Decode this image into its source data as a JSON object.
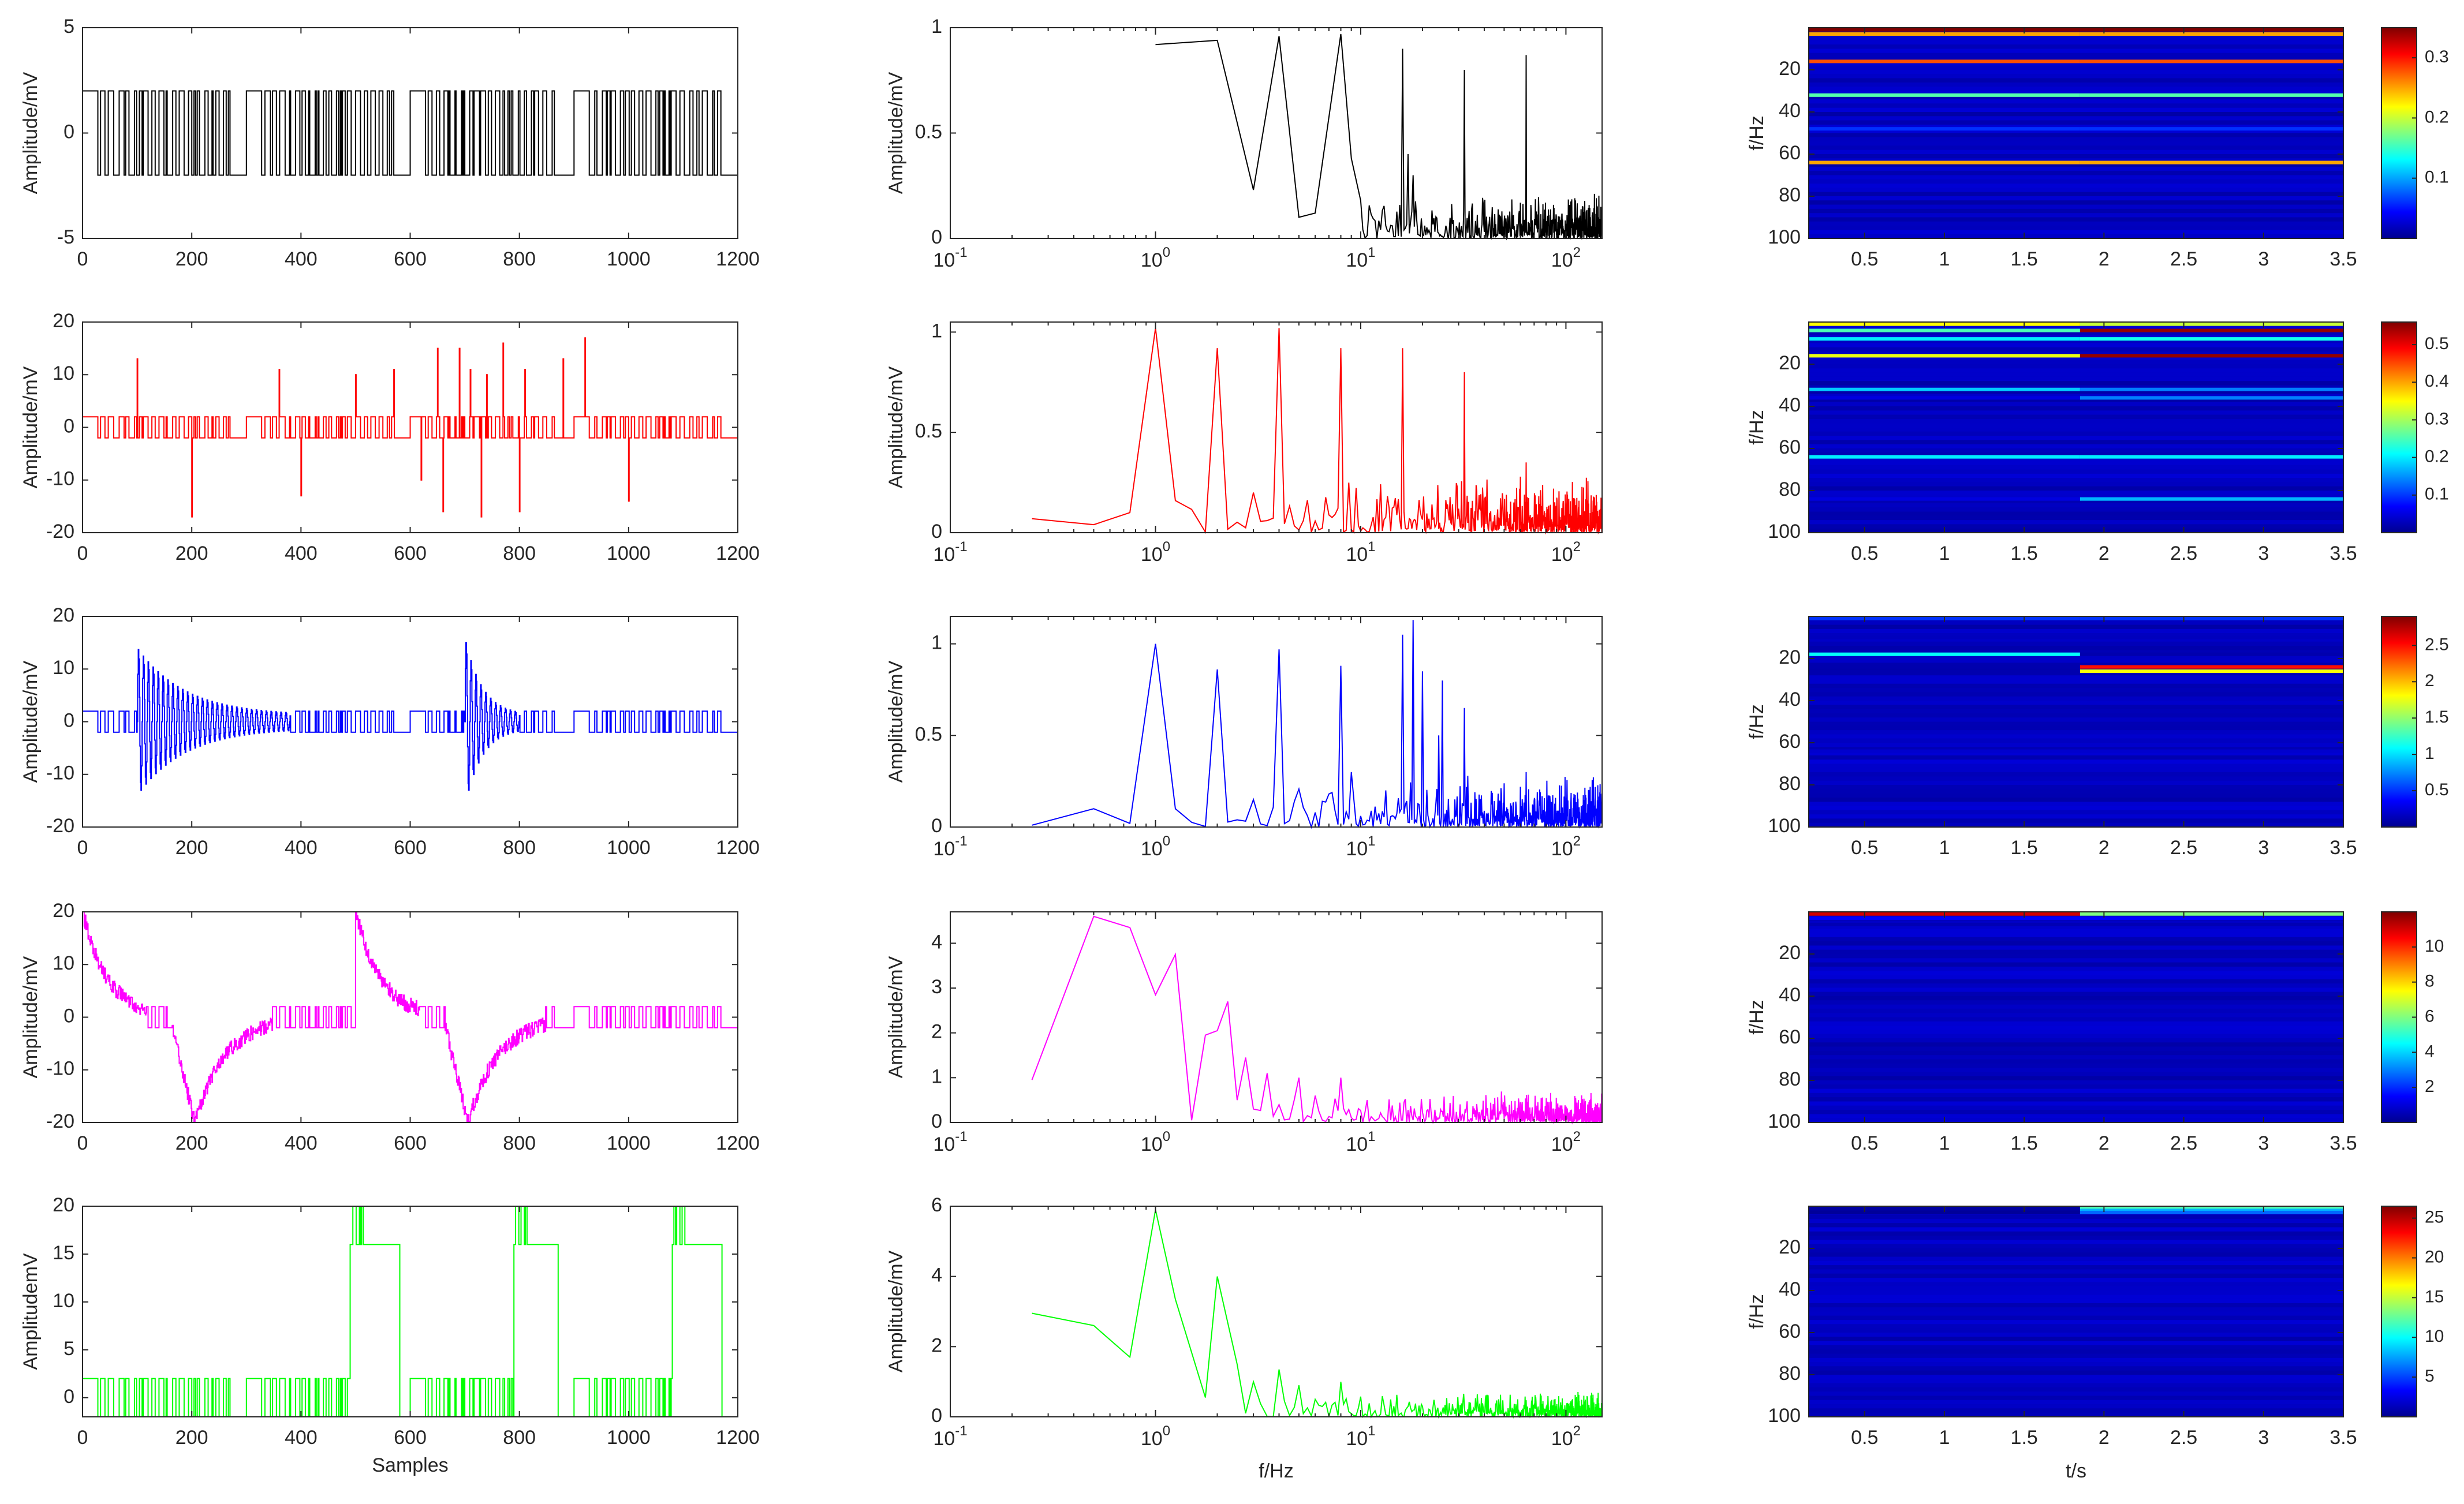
{
  "figure": {
    "rows": 5,
    "columns": [
      "time-domain",
      "frequency-spectrum",
      "spectrogram"
    ]
  },
  "colors": {
    "black": "#000000",
    "red": "#ff0000",
    "blue": "#0000ff",
    "magenta": "#ff00ff",
    "green": "#00ff00",
    "axis": "#262626",
    "colormap": [
      "#00008f",
      "#0000ff",
      "#0080ff",
      "#00ffff",
      "#80ff80",
      "#ffff00",
      "#ff8000",
      "#ff0000",
      "#800000"
    ]
  },
  "chart_data": [
    {
      "panel": "time-1",
      "type": "line",
      "color": "#000000",
      "xlabel": "",
      "ylabel": "Amplitude/mV",
      "xlim": [
        0,
        1200
      ],
      "ylim": [
        -5,
        5
      ],
      "xticks": [
        "0",
        "200",
        "400",
        "600",
        "800",
        "1000",
        "1200"
      ],
      "yticks": [
        "-5",
        "0",
        "5"
      ],
      "signal": {
        "kind": "square",
        "levels": [
          -2,
          2
        ],
        "bursts": [
          [
            0,
            300
          ],
          [
            300,
            600
          ],
          [
            600,
            900
          ],
          [
            900,
            1200
          ]
        ]
      }
    },
    {
      "panel": "time-2",
      "type": "line",
      "color": "#ff0000",
      "xlabel": "",
      "ylabel": "Amplitude/mV",
      "xlim": [
        0,
        1200
      ],
      "ylim": [
        -20,
        20
      ],
      "xticks": [
        "0",
        "200",
        "400",
        "600",
        "800",
        "1000",
        "1200"
      ],
      "yticks": [
        "-20",
        "-10",
        "0",
        "10",
        "20"
      ],
      "signal": {
        "kind": "square-spikes",
        "levels": [
          -2,
          2
        ],
        "spikes": [
          [
            100,
            13
          ],
          [
            200,
            -17
          ],
          [
            360,
            11
          ],
          [
            400,
            -13
          ],
          [
            500,
            10
          ],
          [
            570,
            11
          ],
          [
            620,
            -10
          ],
          [
            650,
            15
          ],
          [
            660,
            -16
          ],
          [
            690,
            15
          ],
          [
            710,
            11
          ],
          [
            730,
            -17
          ],
          [
            740,
            10
          ],
          [
            770,
            16
          ],
          [
            800,
            -16
          ],
          [
            810,
            11
          ],
          [
            880,
            13
          ],
          [
            920,
            17
          ],
          [
            1000,
            -14
          ]
        ]
      }
    },
    {
      "panel": "time-3",
      "type": "line",
      "color": "#0000ff",
      "xlabel": "",
      "ylabel": "Amplitude/mV",
      "xlim": [
        0,
        1200
      ],
      "ylim": [
        -20,
        20
      ],
      "xticks": [
        "0",
        "200",
        "400",
        "600",
        "800",
        "1000",
        "1200"
      ],
      "yticks": [
        "-20",
        "-10",
        "0",
        "10",
        "20"
      ],
      "signal": {
        "kind": "oscillation-bursts",
        "levels": [
          -2,
          2
        ],
        "bursts": [
          [
            100,
            380,
            13
          ],
          [
            700,
            800,
            15
          ]
        ]
      }
    },
    {
      "panel": "time-4",
      "type": "line",
      "color": "#ff00ff",
      "xlabel": "",
      "ylabel": "Amplitude/mV",
      "xlim": [
        0,
        1200
      ],
      "ylim": [
        -20,
        20
      ],
      "xticks": [
        "0",
        "200",
        "400",
        "600",
        "800",
        "1000",
        "1200"
      ],
      "yticks": [
        "-20",
        "-10",
        "0",
        "10",
        "20"
      ],
      "signal": {
        "kind": "drift",
        "levels": [
          -2,
          2
        ],
        "events": [
          [
            0,
            20
          ],
          [
            160,
            -20
          ],
          [
            500,
            20
          ],
          [
            660,
            -20
          ]
        ]
      }
    },
    {
      "panel": "time-5",
      "type": "line",
      "color": "#00ff00",
      "xlabel": "Samples",
      "ylabel": "AmplitudemV",
      "xlim": [
        0,
        1200
      ],
      "ylim": [
        -2,
        20
      ],
      "xticks": [
        "0",
        "200",
        "400",
        "600",
        "800",
        "1000",
        "1200"
      ],
      "yticks": [
        "0",
        "5",
        "10",
        "15",
        "20"
      ],
      "signal": {
        "kind": "level-shift",
        "levels": [
          -2,
          2
        ],
        "high": [
          [
            490,
            580
          ],
          [
            790,
            870
          ],
          [
            1080,
            1170
          ]
        ],
        "highLevels": [
          16,
          20
        ]
      }
    },
    {
      "panel": "freq-1",
      "type": "line",
      "scale": "logx",
      "color": "#000000",
      "xlabel": "",
      "ylabel": "Amplitude/mV",
      "xlim": [
        0.1,
        150
      ],
      "ylim": [
        0,
        1
      ],
      "yticks": [
        "0",
        "0.5",
        "1"
      ],
      "peaks": [
        [
          1,
          0.92
        ],
        [
          2,
          0.94
        ],
        [
          3,
          0.23
        ],
        [
          4,
          0.96
        ],
        [
          5,
          0.1
        ],
        [
          6,
          0.12
        ],
        [
          8,
          0.97
        ],
        [
          9,
          0.38
        ],
        [
          16,
          0.9
        ],
        [
          17,
          0.4
        ],
        [
          18,
          0.3
        ],
        [
          32,
          0.8
        ],
        [
          64,
          0.87
        ]
      ],
      "noise": {
        "from": 10,
        "to": 150,
        "amp": 0.14
      }
    },
    {
      "panel": "freq-2",
      "type": "line",
      "scale": "logx",
      "color": "#ff0000",
      "xlabel": "",
      "ylabel": "Amplitude/mV",
      "xlim": [
        0.1,
        150
      ],
      "ylim": [
        0,
        1.05
      ],
      "yticks": [
        "0",
        "0.5",
        "1"
      ],
      "peaks": [
        [
          0.25,
          0.07
        ],
        [
          0.5,
          0.04
        ],
        [
          0.75,
          0.1
        ],
        [
          1,
          1.02
        ],
        [
          1.25,
          0.16
        ],
        [
          2,
          0.92
        ],
        [
          3,
          0.2
        ],
        [
          4,
          1.02
        ],
        [
          8,
          0.92
        ],
        [
          16,
          0.92
        ],
        [
          32,
          0.8
        ],
        [
          64,
          0.35
        ]
      ],
      "noise": {
        "from": 1.2,
        "to": 150,
        "amp": 0.18
      }
    },
    {
      "panel": "freq-3",
      "type": "line",
      "scale": "logx",
      "color": "#0000ff",
      "xlabel": "",
      "ylabel": "Amplitude/mV",
      "xlim": [
        0.1,
        150
      ],
      "ylim": [
        0,
        1.15
      ],
      "yticks": [
        "0",
        "0.5",
        "1"
      ],
      "peaks": [
        [
          0.25,
          0.01
        ],
        [
          0.5,
          0.1
        ],
        [
          0.75,
          0.02
        ],
        [
          1,
          1.0
        ],
        [
          1.25,
          0.1
        ],
        [
          2,
          0.86
        ],
        [
          3,
          0.15
        ],
        [
          4,
          0.97
        ],
        [
          8,
          0.88
        ],
        [
          9,
          0.3
        ],
        [
          16,
          1.05
        ],
        [
          18,
          1.13
        ],
        [
          20,
          0.85
        ],
        [
          24,
          0.5
        ],
        [
          25,
          0.8
        ],
        [
          32,
          0.65
        ],
        [
          64,
          0.3
        ]
      ],
      "noise": {
        "from": 1.2,
        "to": 150,
        "amp": 0.18
      }
    },
    {
      "panel": "freq-4",
      "type": "line",
      "scale": "logx",
      "color": "#ff00ff",
      "xlabel": "",
      "ylabel": "Amplitude/mV",
      "xlim": [
        0.1,
        150
      ],
      "ylim": [
        0,
        4.7
      ],
      "yticks": [
        "0",
        "1",
        "2",
        "3",
        "4"
      ],
      "peaks": [
        [
          0.25,
          0.95
        ],
        [
          0.5,
          4.6
        ],
        [
          0.75,
          4.35
        ],
        [
          1,
          2.85
        ],
        [
          1.25,
          3.75
        ],
        [
          1.5,
          0.05
        ],
        [
          1.75,
          1.95
        ],
        [
          2,
          2.05
        ],
        [
          2.25,
          2.7
        ],
        [
          2.5,
          0.5
        ],
        [
          2.75,
          1.45
        ],
        [
          3,
          0.3
        ],
        [
          3.5,
          1.1
        ],
        [
          4,
          0.4
        ],
        [
          5,
          1.0
        ],
        [
          6,
          0.6
        ],
        [
          8,
          1.0
        ]
      ],
      "noise": {
        "from": 3,
        "to": 150,
        "amp": 0.45
      }
    },
    {
      "panel": "freq-5",
      "type": "line",
      "scale": "logx",
      "color": "#00ff00",
      "xlabel": "f/Hz",
      "ylabel": "Amplitude/mV",
      "xlim": [
        0.1,
        150
      ],
      "ylim": [
        0,
        6
      ],
      "yticks": [
        "0",
        "2",
        "4",
        "6"
      ],
      "peaks": [
        [
          0.25,
          2.95
        ],
        [
          0.5,
          2.6
        ],
        [
          0.75,
          1.7
        ],
        [
          1,
          5.9
        ],
        [
          1.25,
          3.35
        ],
        [
          1.75,
          0.55
        ],
        [
          2,
          4.0
        ],
        [
          2.5,
          1.5
        ],
        [
          3,
          1.0
        ],
        [
          4,
          1.35
        ],
        [
          5,
          0.9
        ],
        [
          6,
          0.5
        ],
        [
          8,
          1.0
        ]
      ],
      "noise": {
        "from": 2.5,
        "to": 150,
        "amp": 0.5
      }
    },
    {
      "panel": "spec-1",
      "type": "heatmap",
      "xlabel": "",
      "ylabel": "f/Hz",
      "xlim": [
        0.15,
        3.5
      ],
      "ylim": [
        0,
        100
      ],
      "xticks": [
        "0.5",
        "1",
        "1.5",
        "2",
        "2.5",
        "3",
        "3.5"
      ],
      "yticks": [
        "20",
        "40",
        "60",
        "80",
        "100"
      ],
      "cbar": {
        "min": 0,
        "max": 0.35,
        "ticks": [
          "0.1",
          "0.2",
          "0.3"
        ]
      },
      "lines": [
        [
          1,
          0.35,
          0.35
        ],
        [
          3,
          0.25,
          0.25
        ],
        [
          16,
          0.28,
          0.28
        ],
        [
          32,
          0.16,
          0.16
        ],
        [
          48,
          0.06,
          0.06
        ],
        [
          64,
          0.25,
          0.25
        ]
      ]
    },
    {
      "panel": "spec-2",
      "type": "heatmap",
      "xlabel": "",
      "ylabel": "f/Hz",
      "xlim": [
        0.15,
        3.5
      ],
      "ylim": [
        0,
        100
      ],
      "xticks": [
        "0.5",
        "1",
        "1.5",
        "2",
        "2.5",
        "3",
        "3.5"
      ],
      "yticks": [
        "20",
        "40",
        "60",
        "80",
        "100"
      ],
      "cbar": {
        "min": 0,
        "max": 0.56,
        "ticks": [
          "0.1",
          "0.2",
          "0.3",
          "0.4",
          "0.5"
        ]
      },
      "lines": [
        [
          1,
          0.35,
          0.32
        ],
        [
          4,
          0.25,
          0.55
        ],
        [
          8,
          0.2,
          0.22
        ],
        [
          16,
          0.34,
          0.55
        ],
        [
          32,
          0.18,
          0.14
        ],
        [
          36,
          0.05,
          0.14
        ],
        [
          64,
          0.2,
          0.2
        ],
        [
          84,
          0.05,
          0.17
        ]
      ]
    },
    {
      "panel": "spec-3",
      "type": "heatmap",
      "xlabel": "",
      "ylabel": "f/Hz",
      "xlim": [
        0.15,
        3.5
      ],
      "ylim": [
        0,
        100
      ],
      "xticks": [
        "0.5",
        "1",
        "1.5",
        "2",
        "2.5",
        "3",
        "3.5"
      ],
      "yticks": [
        "20",
        "40",
        "60",
        "80",
        "100"
      ],
      "cbar": {
        "min": 0,
        "max": 2.9,
        "ticks": [
          "0.5",
          "1",
          "1.5",
          "2",
          "2.5"
        ]
      },
      "lines": [
        [
          1,
          0.5,
          0.5
        ],
        [
          10,
          0.15,
          0.15
        ],
        [
          18,
          1.1,
          0.1
        ],
        [
          24,
          0.1,
          2.5
        ],
        [
          26,
          0.1,
          1.8
        ],
        [
          64,
          0.2,
          0.2
        ]
      ]
    },
    {
      "panel": "spec-4",
      "type": "heatmap",
      "xlabel": "",
      "ylabel": "f/Hz",
      "xlim": [
        0.15,
        3.5
      ],
      "ylim": [
        0,
        100
      ],
      "xticks": [
        "0.5",
        "1",
        "1.5",
        "2",
        "2.5",
        "3",
        "3.5"
      ],
      "yticks": [
        "20",
        "40",
        "60",
        "80",
        "100"
      ],
      "cbar": {
        "min": 0,
        "max": 12,
        "ticks": [
          "2",
          "4",
          "6",
          "8",
          "10"
        ]
      },
      "lines": [
        [
          1,
          11,
          6
        ],
        [
          3,
          1.5,
          1.5
        ],
        [
          6,
          0.5,
          0.5
        ]
      ]
    },
    {
      "panel": "spec-5",
      "type": "heatmap",
      "xlabel": "t/s",
      "ylabel": "f/Hz",
      "xlim": [
        0.15,
        3.5
      ],
      "ylim": [
        0,
        100
      ],
      "xticks": [
        "0.5",
        "1",
        "1.5",
        "2",
        "2.5",
        "3",
        "3.5"
      ],
      "yticks": [
        "20",
        "40",
        "60",
        "80",
        "100"
      ],
      "cbar": {
        "min": 0,
        "max": 26.5,
        "ticks": [
          "5",
          "10",
          "15",
          "20",
          "25"
        ]
      },
      "lines": [
        [
          1,
          0.5,
          12
        ],
        [
          2,
          0.5,
          8
        ],
        [
          3,
          0.3,
          6
        ]
      ]
    }
  ]
}
